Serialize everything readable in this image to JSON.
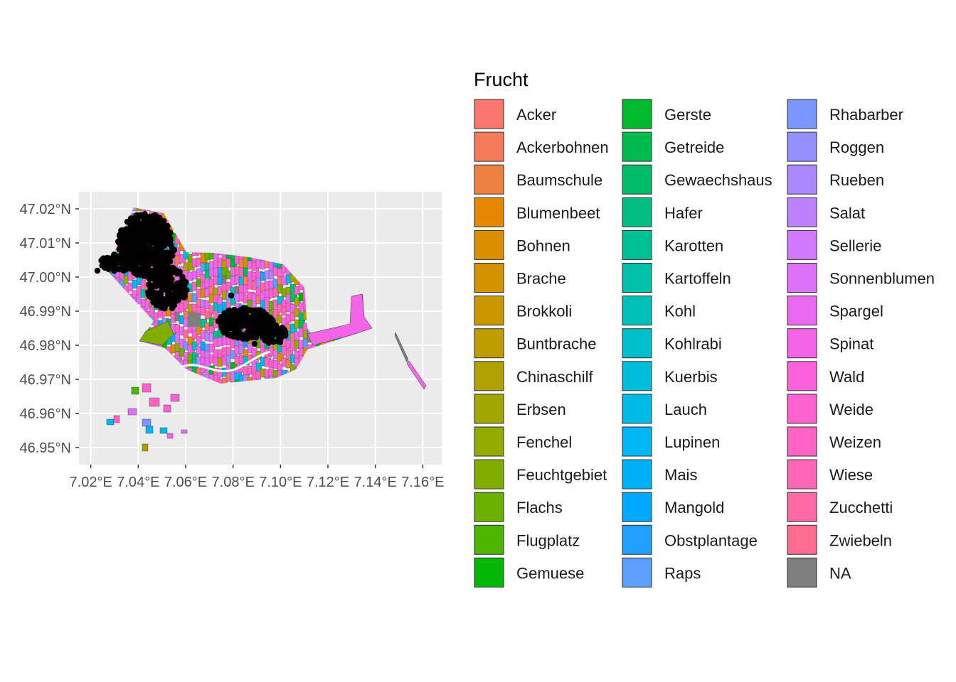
{
  "colors": {
    "panel_background": "#EBEBEB",
    "grid_major": "#FFFFFF",
    "points": "#000000",
    "na": "#7F7F7F"
  },
  "map": {
    "lon_range": [
      7.015,
      7.168
    ],
    "lat_range": [
      46.945,
      47.025
    ],
    "x_ticks": [
      {
        "value": 7.02,
        "label": "7.02°E"
      },
      {
        "value": 7.04,
        "label": "7.04°E"
      },
      {
        "value": 7.06,
        "label": "7.06°E"
      },
      {
        "value": 7.08,
        "label": "7.08°E"
      },
      {
        "value": 7.1,
        "label": "7.10°E"
      },
      {
        "value": 7.12,
        "label": "7.12°E"
      },
      {
        "value": 7.14,
        "label": "7.14°E"
      },
      {
        "value": 7.16,
        "label": "7.16°E"
      }
    ],
    "y_ticks": [
      {
        "value": 47.02,
        "label": "47.02°N"
      },
      {
        "value": 47.01,
        "label": "47.01°N"
      },
      {
        "value": 47.0,
        "label": "47.00°N"
      },
      {
        "value": 46.99,
        "label": "46.99°N"
      },
      {
        "value": 46.98,
        "label": "46.98°N"
      },
      {
        "value": 46.97,
        "label": "46.97°N"
      },
      {
        "value": 46.96,
        "label": "46.96°N"
      },
      {
        "value": 46.95,
        "label": "46.95°N"
      }
    ]
  },
  "legend": {
    "title": "Frucht",
    "items": [
      {
        "label": "Acker",
        "color": "#F8766D"
      },
      {
        "label": "Ackerbohnen",
        "color": "#F37B59"
      },
      {
        "label": "Baumschule",
        "color": "#ED8141"
      },
      {
        "label": "Blumenbeet",
        "color": "#E58700"
      },
      {
        "label": "Bohnen",
        "color": "#DC8D00"
      },
      {
        "label": "Brache",
        "color": "#D39200"
      },
      {
        "label": "Brokkoli",
        "color": "#C99800"
      },
      {
        "label": "Buntbrache",
        "color": "#BD9D00"
      },
      {
        "label": "Chinaschilf",
        "color": "#B0A100"
      },
      {
        "label": "Erbsen",
        "color": "#A3A500"
      },
      {
        "label": "Fenchel",
        "color": "#93AA00"
      },
      {
        "label": "Feuchtgebiet",
        "color": "#81AD00"
      },
      {
        "label": "Flachs",
        "color": "#6BB100"
      },
      {
        "label": "Flugplatz",
        "color": "#4DB400"
      },
      {
        "label": "Gemuese",
        "color": "#00B704"
      },
      {
        "label": "Gerste",
        "color": "#00B92C"
      },
      {
        "label": "Getreide",
        "color": "#00BB4E"
      },
      {
        "label": "Gewaechshaus",
        "color": "#00BC68"
      },
      {
        "label": "Hafer",
        "color": "#00BE80"
      },
      {
        "label": "Karotten",
        "color": "#00BF95"
      },
      {
        "label": "Kartoffeln",
        "color": "#00C0A9"
      },
      {
        "label": "Kohl",
        "color": "#00C0BB"
      },
      {
        "label": "Kohlrabi",
        "color": "#00BFCC"
      },
      {
        "label": "Kuerbis",
        "color": "#00BDDB"
      },
      {
        "label": "Lauch",
        "color": "#00BAE8"
      },
      {
        "label": "Lupinen",
        "color": "#00B6F3"
      },
      {
        "label": "Mais",
        "color": "#00B0F6"
      },
      {
        "label": "Mangold",
        "color": "#00A9FF"
      },
      {
        "label": "Obstplantage",
        "color": "#20A0FF"
      },
      {
        "label": "Raps",
        "color": "#5E9EFF"
      },
      {
        "label": "Rhabarber",
        "color": "#7997FF"
      },
      {
        "label": "Roggen",
        "color": "#9590FF"
      },
      {
        "label": "Rueben",
        "color": "#AC88FF"
      },
      {
        "label": "Salat",
        "color": "#BF80FF"
      },
      {
        "label": "Sellerie",
        "color": "#D078FF"
      },
      {
        "label": "Sonnenblumen",
        "color": "#DE71F9"
      },
      {
        "label": "Spargel",
        "color": "#E96AF0"
      },
      {
        "label": "Spinat",
        "color": "#F365E6"
      },
      {
        "label": "Wald",
        "color": "#F962DB"
      },
      {
        "label": "Weide",
        "color": "#FD61D0"
      },
      {
        "label": "Weizen",
        "color": "#FF63C3"
      },
      {
        "label": "Wiese",
        "color": "#FF66B5"
      },
      {
        "label": "Zucchetti",
        "color": "#FF6AA6"
      },
      {
        "label": "Zwiebeln",
        "color": "#FF6C91"
      },
      {
        "label": "NA",
        "color": "#7F7F7F"
      }
    ]
  }
}
